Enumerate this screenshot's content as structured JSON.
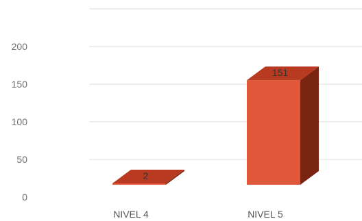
{
  "chart_data": {
    "type": "bar",
    "style": "3d-column",
    "categories": [
      "NIVEL 4",
      "NIVEL 5"
    ],
    "values": [
      2,
      151
    ],
    "data_labels": [
      "2",
      "151"
    ],
    "y_ticks": [
      "0",
      "50",
      "100",
      "150",
      "200"
    ],
    "ylim": [
      0,
      250
    ],
    "grid": true,
    "legend": "none",
    "colors": {
      "front": "#e0573a",
      "top": "#b83a20",
      "side": "#7a2412",
      "grid": "#dcdcdc"
    }
  }
}
